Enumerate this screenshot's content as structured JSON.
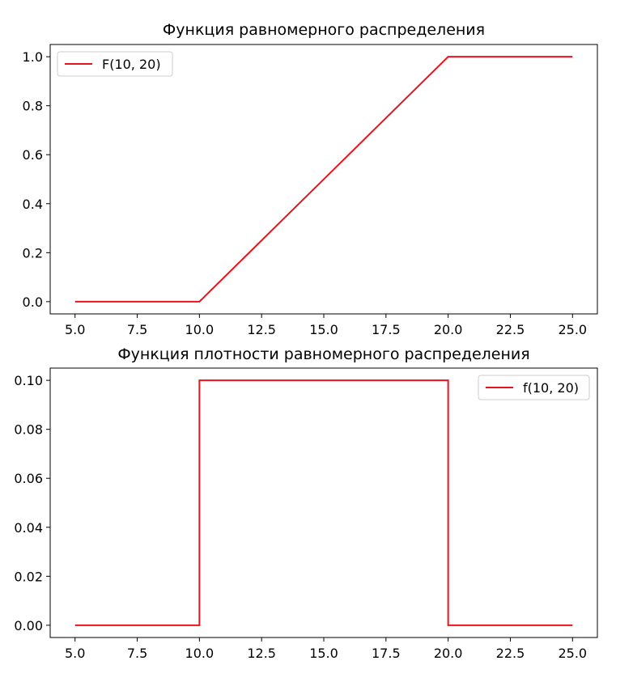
{
  "chart_data": [
    {
      "type": "line",
      "title": "Функция равномерного распределения",
      "xlabel": "",
      "ylabel": "",
      "xlim": [
        4.0,
        26.0
      ],
      "ylim": [
        -0.05,
        1.05
      ],
      "x_ticks": [
        5.0,
        7.5,
        10.0,
        12.5,
        15.0,
        17.5,
        20.0,
        22.5,
        25.0
      ],
      "x_tick_labels": [
        "5.0",
        "7.5",
        "10.0",
        "12.5",
        "15.0",
        "17.5",
        "20.0",
        "22.5",
        "25.0"
      ],
      "y_ticks": [
        0.0,
        0.2,
        0.4,
        0.6,
        0.8,
        1.0
      ],
      "y_tick_labels": [
        "0.0",
        "0.2",
        "0.4",
        "0.6",
        "0.8",
        "1.0"
      ],
      "grid": false,
      "legend_position": "upper-left",
      "series": [
        {
          "name": "F(10, 20)",
          "color": "#e6141c",
          "x": [
            5.0,
            10.0,
            20.0,
            25.0
          ],
          "y": [
            0.0,
            0.0,
            1.0,
            1.0
          ]
        }
      ]
    },
    {
      "type": "line",
      "title": "Функция плотности равномерного распределения",
      "xlabel": "",
      "ylabel": "",
      "xlim": [
        4.0,
        26.0
      ],
      "ylim": [
        -0.005,
        0.105
      ],
      "x_ticks": [
        5.0,
        7.5,
        10.0,
        12.5,
        15.0,
        17.5,
        20.0,
        22.5,
        25.0
      ],
      "x_tick_labels": [
        "5.0",
        "7.5",
        "10.0",
        "12.5",
        "15.0",
        "17.5",
        "20.0",
        "22.5",
        "25.0"
      ],
      "y_ticks": [
        0.0,
        0.02,
        0.04,
        0.06,
        0.08,
        0.1
      ],
      "y_tick_labels": [
        "0.00",
        "0.02",
        "0.04",
        "0.06",
        "0.08",
        "0.10"
      ],
      "grid": false,
      "legend_position": "upper-right",
      "series": [
        {
          "name": "f(10, 20)",
          "color": "#e6141c",
          "x": [
            5.0,
            10.0,
            10.0,
            20.0,
            20.0,
            25.0
          ],
          "y": [
            0.0,
            0.0,
            0.1,
            0.1,
            0.0,
            0.0
          ]
        }
      ]
    }
  ]
}
